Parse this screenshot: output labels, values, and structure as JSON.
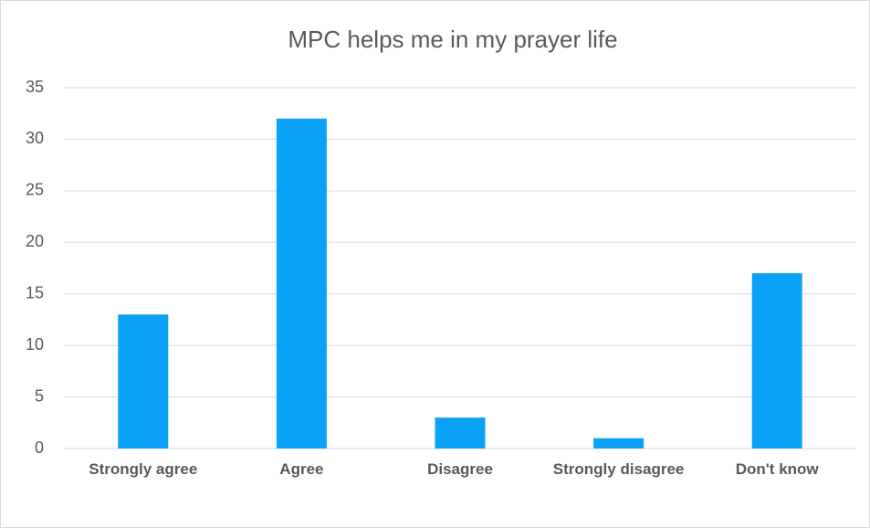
{
  "chart_data": {
    "type": "bar",
    "title": "MPC helps me in my prayer life",
    "categories": [
      "Strongly agree",
      "Agree",
      "Disagree",
      "Strongly disagree",
      "Don't know"
    ],
    "values": [
      13,
      32,
      3,
      1,
      17
    ],
    "color": "#0aa2f7",
    "ylim": [
      0,
      35
    ],
    "yticks": [
      0,
      5,
      10,
      15,
      20,
      25,
      30,
      35
    ],
    "grid": true
  }
}
